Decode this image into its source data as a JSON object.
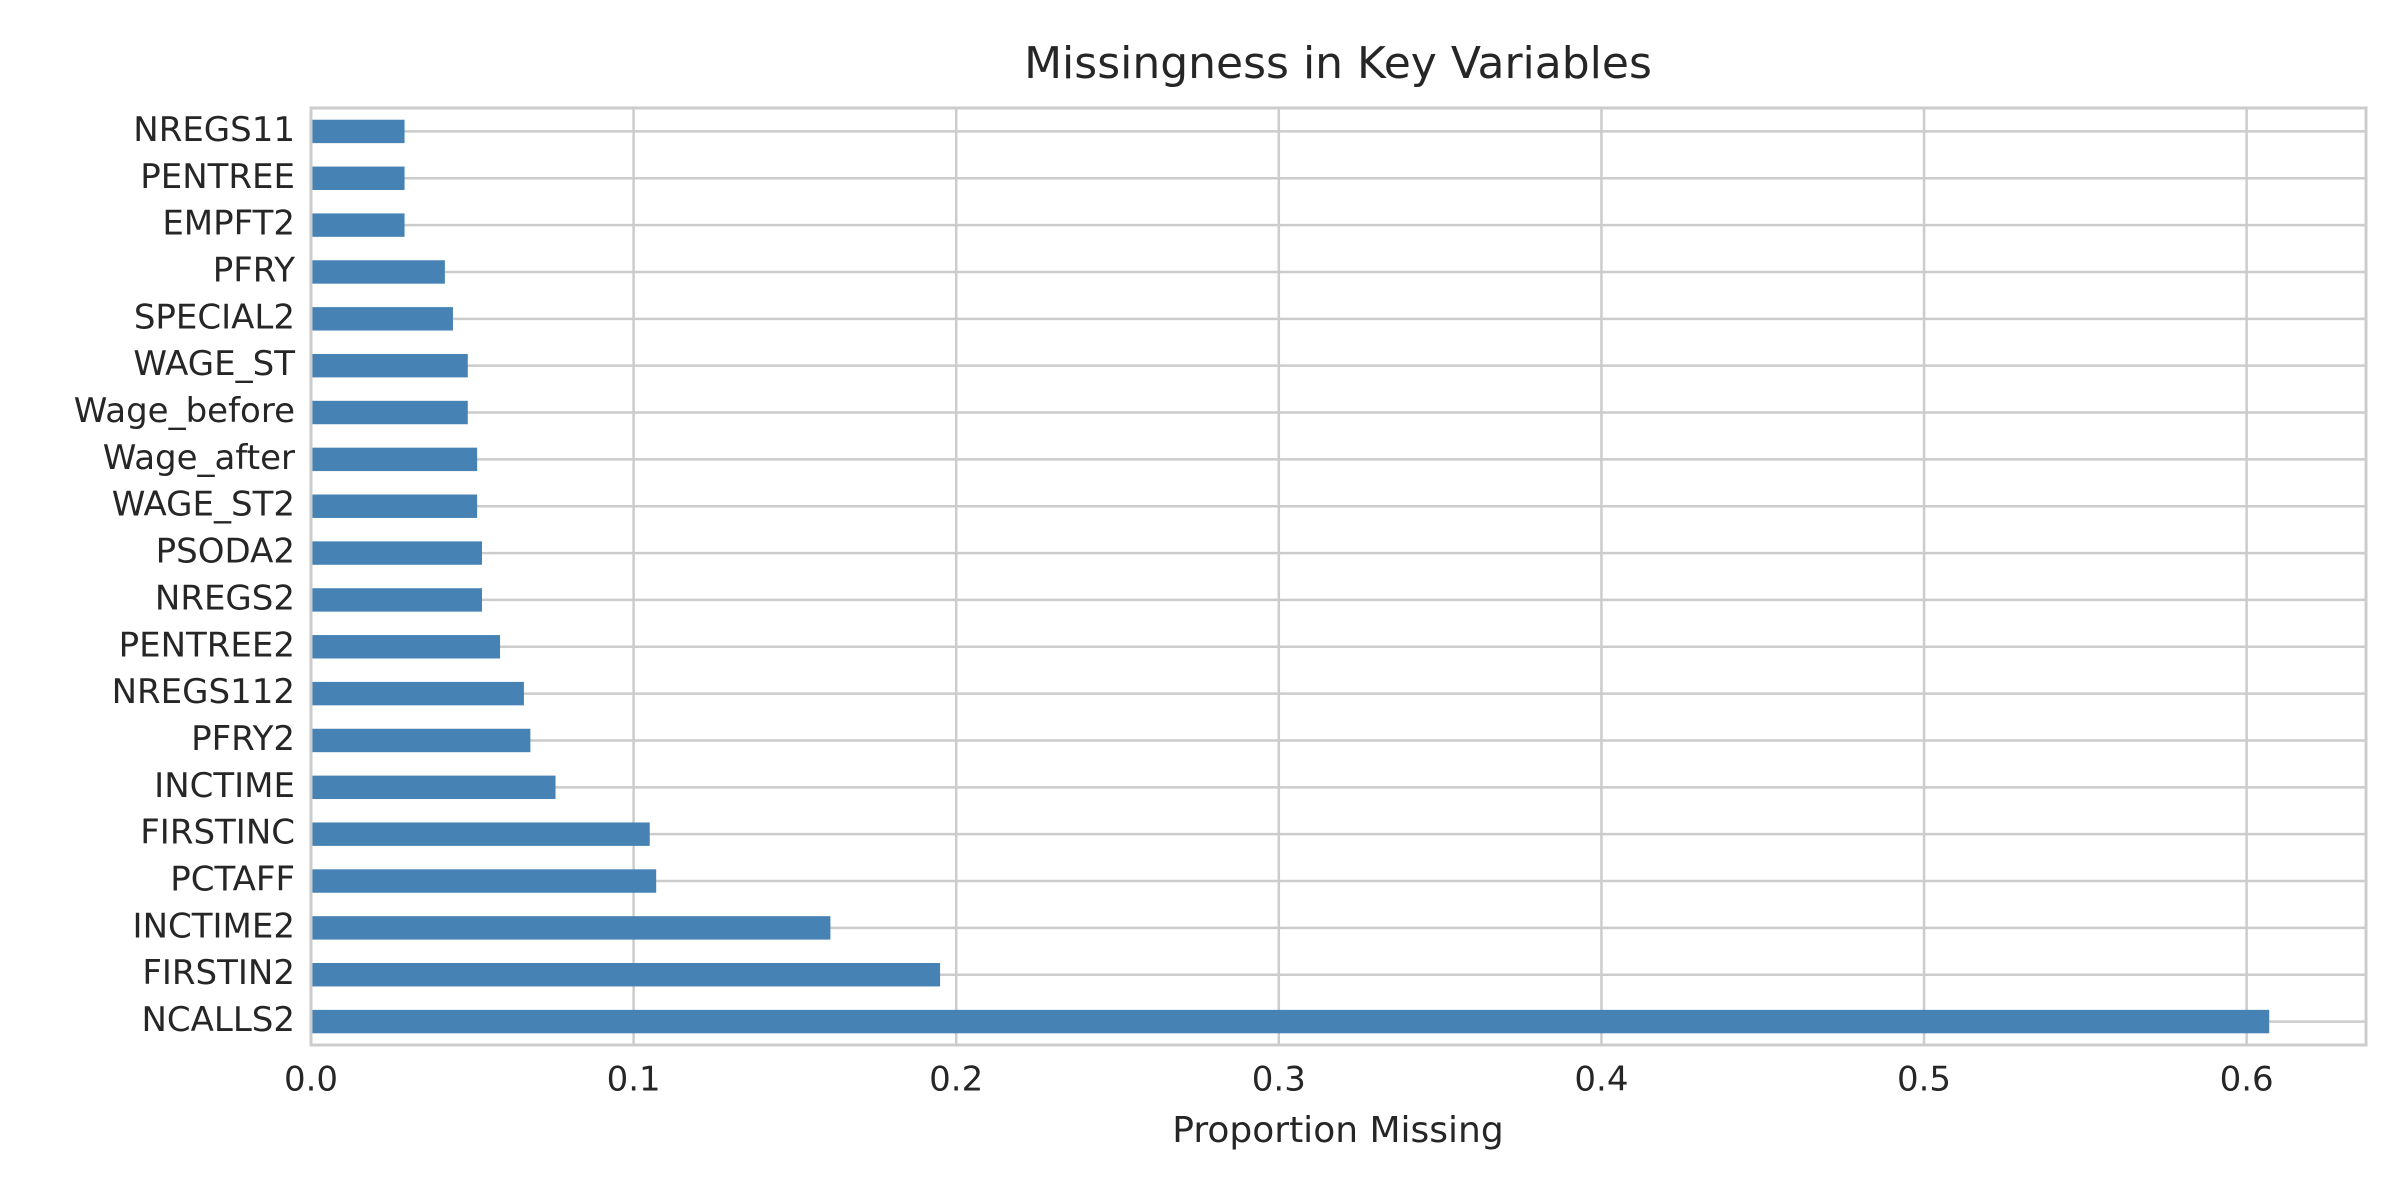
{
  "chart_data": {
    "type": "barh",
    "title": "Missingness in Key Variables",
    "x_label": "Proportion Missing",
    "categories": [
      "NREGS11",
      "PENTREE",
      "EMPFT2",
      "PFRY",
      "SPECIAL2",
      "WAGE_ST",
      "Wage_before",
      "Wage_after",
      "WAGE_ST2",
      "PSODA2",
      "NREGS2",
      "PENTREE2",
      "NREGS112",
      "PFRY2",
      "INCTIME",
      "FIRSTINC",
      "PCTAFF",
      "INCTIME2",
      "FIRSTIN2",
      "NCALLS2"
    ],
    "values": [
      0.029,
      0.029,
      0.029,
      0.0415,
      0.044,
      0.0486,
      0.0486,
      0.0515,
      0.0515,
      0.053,
      0.053,
      0.0586,
      0.066,
      0.068,
      0.0758,
      0.105,
      0.107,
      0.161,
      0.195,
      0.607
    ],
    "color": "#4682b4",
    "xlim": [
      0,
      0.637
    ],
    "xticks": [
      {
        "value": 0,
        "label": "0.0"
      },
      0.1,
      0.2,
      0.3,
      0.4,
      0.5,
      0.6
    ],
    "grid": true
  }
}
